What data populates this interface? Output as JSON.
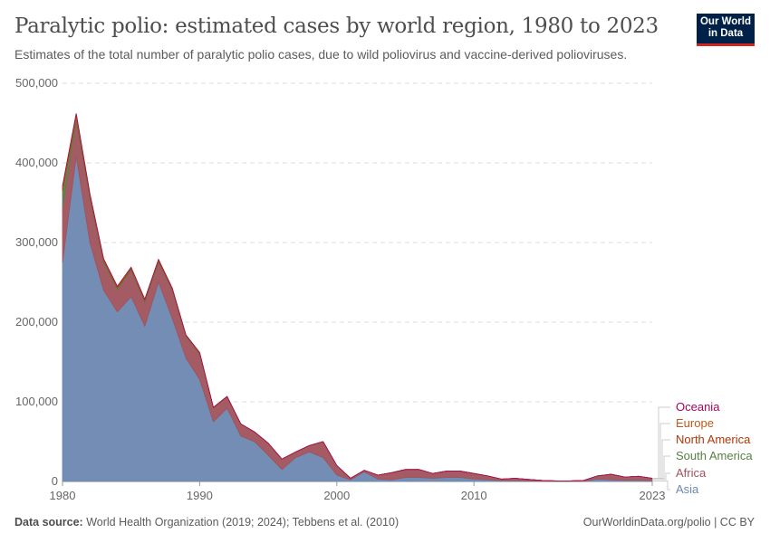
{
  "header": {
    "title": "Paralytic polio: estimated cases by world region, 1980 to 2023",
    "subtitle": "Estimates of the total number of paralytic polio cases, due to wild poliovirus and vaccine-derived polioviruses.",
    "logo": "Our World in Data"
  },
  "footer": {
    "source_label": "Data source:",
    "source": "World Health Organization (2019; 2024); Tebbens et al. (2010)",
    "credit": "OurWorldinData.org/polio | CC BY"
  },
  "chart_data": {
    "type": "area",
    "stacked": true,
    "title": "Paralytic polio: estimated cases by world region, 1980 to 2023",
    "ylim": [
      0,
      500000
    ],
    "y_ticks": [
      "0",
      "100,000",
      "200,000",
      "300,000",
      "400,000",
      "500,000"
    ],
    "x_ticks": [
      "1980",
      "1990",
      "2000",
      "2010",
      "2023"
    ],
    "grid": true,
    "legend": "right",
    "x": [
      1980,
      1981,
      1982,
      1983,
      1984,
      1985,
      1986,
      1987,
      1988,
      1989,
      1990,
      1991,
      1992,
      1993,
      1994,
      1995,
      1996,
      1997,
      1998,
      1999,
      2000,
      2001,
      2002,
      2003,
      2004,
      2005,
      2006,
      2007,
      2008,
      2009,
      2010,
      2011,
      2012,
      2013,
      2014,
      2015,
      2016,
      2017,
      2018,
      2019,
      2020,
      2021,
      2022,
      2023
    ],
    "series": [
      {
        "name": "Asia",
        "color": "#6d87b0",
        "values": [
          275000,
          408000,
          300000,
          240000,
          213000,
          232000,
          195000,
          250000,
          205000,
          155000,
          128000,
          75000,
          92000,
          57000,
          50000,
          33000,
          15000,
          30000,
          37000,
          30000,
          8000,
          2000,
          12000,
          3000,
          2000,
          5000,
          5000,
          4000,
          5000,
          5000,
          3000,
          2000,
          1000,
          1000,
          500,
          300,
          200,
          200,
          300,
          3000,
          2000,
          1500,
          1500,
          1000
        ]
      },
      {
        "name": "Africa",
        "color": "#a0525c",
        "values": [
          70000,
          45000,
          55000,
          35000,
          28000,
          33000,
          30000,
          25000,
          35000,
          27000,
          32000,
          17000,
          14000,
          15000,
          12000,
          15000,
          13000,
          7000,
          8000,
          20000,
          12000,
          2000,
          2000,
          5000,
          9000,
          10000,
          10000,
          6000,
          8000,
          8000,
          7000,
          5000,
          2000,
          3000,
          2000,
          1000,
          500,
          500,
          1000,
          4000,
          7000,
          4000,
          5000,
          3000
        ]
      },
      {
        "name": "South America",
        "color": "#578145",
        "values": [
          20000,
          5000,
          3000,
          2500,
          2000,
          2000,
          2000,
          2000,
          1500,
          1000,
          1000,
          500,
          300,
          0,
          0,
          0,
          0,
          0,
          0,
          0,
          0,
          0,
          0,
          0,
          0,
          0,
          0,
          0,
          0,
          0,
          0,
          0,
          0,
          0,
          0,
          0,
          0,
          0,
          0,
          0,
          0,
          0,
          0,
          0
        ]
      },
      {
        "name": "North America",
        "color": "#b13507",
        "values": [
          3000,
          2000,
          1500,
          1000,
          1000,
          1000,
          1000,
          1000,
          800,
          500,
          500,
          300,
          200,
          100,
          0,
          0,
          0,
          0,
          0,
          0,
          0,
          0,
          0,
          0,
          0,
          0,
          0,
          0,
          0,
          0,
          0,
          0,
          0,
          0,
          0,
          0,
          0,
          0,
          0,
          0,
          0,
          0,
          0,
          0
        ]
      },
      {
        "name": "Europe",
        "color": "#c05917",
        "values": [
          3000,
          2000,
          1500,
          1000,
          1000,
          1000,
          800,
          800,
          600,
          500,
          400,
          300,
          300,
          200,
          200,
          100,
          100,
          100,
          100,
          100,
          0,
          0,
          0,
          0,
          0,
          0,
          0,
          0,
          0,
          0,
          0,
          0,
          0,
          0,
          0,
          0,
          0,
          0,
          0,
          0,
          0,
          0,
          0,
          0
        ]
      },
      {
        "name": "Oceania",
        "color": "#a2065f",
        "values": [
          0,
          0,
          0,
          0,
          0,
          0,
          0,
          0,
          0,
          0,
          0,
          0,
          0,
          0,
          0,
          0,
          0,
          0,
          0,
          0,
          0,
          0,
          0,
          0,
          0,
          0,
          0,
          0,
          0,
          0,
          0,
          0,
          0,
          0,
          0,
          0,
          0,
          0,
          0,
          0,
          0,
          0,
          0,
          0
        ]
      }
    ]
  }
}
